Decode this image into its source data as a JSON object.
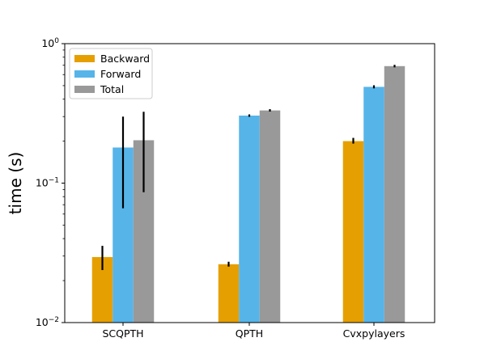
{
  "chart_data": {
    "type": "bar",
    "title": "",
    "xlabel": "",
    "ylabel": "time (s)",
    "yscale": "log",
    "ylim": [
      0.01,
      1
    ],
    "yticks": [
      {
        "value": 0.01,
        "base": "10",
        "exp": "−2"
      },
      {
        "value": 0.1,
        "base": "10",
        "exp": "−1"
      },
      {
        "value": 1,
        "base": "10",
        "exp": "0"
      }
    ],
    "categories": [
      "SCQPTH",
      "QPTH",
      "Cvxpylayers"
    ],
    "series": [
      {
        "name": "Backward",
        "color": "#e69f00",
        "values": [
          0.0295,
          0.0262,
          0.2
        ],
        "err_low": [
          0.0238,
          0.0252,
          0.192
        ],
        "err_high": [
          0.0355,
          0.0273,
          0.211
        ]
      },
      {
        "name": "Forward",
        "color": "#56b4e9",
        "values": [
          0.18,
          0.305,
          0.49
        ],
        "err_low": [
          0.066,
          0.299,
          0.478
        ],
        "err_high": [
          0.3,
          0.311,
          0.503
        ]
      },
      {
        "name": "Total",
        "color": "#999999",
        "values": [
          0.203,
          0.332,
          0.69
        ],
        "err_low": [
          0.086,
          0.326,
          0.676
        ],
        "err_high": [
          0.325,
          0.339,
          0.705
        ]
      }
    ],
    "legend_position": "upper-left",
    "grid": false
  }
}
